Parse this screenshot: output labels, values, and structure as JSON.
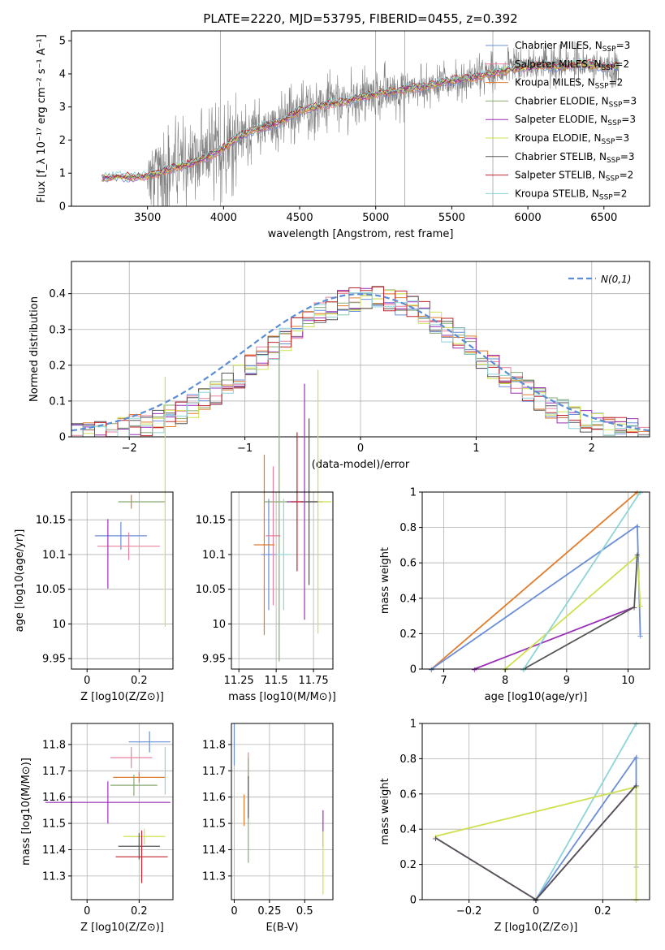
{
  "title": "PLATE=2220, MJD=53795, FIBERID=0455, z=0.392",
  "series_colors": {
    "Chabrier MILES": "#6a8ed8",
    "Salpeter MILES": "#e8829e",
    "Kroupa MILES": "#e07b2c",
    "Chabrier ELODIE": "#88aa70",
    "Salpeter ELODIE": "#9b2fb8",
    "Kroupa ELODIE": "#cfe04f",
    "Chabrier STELIB": "#555555",
    "Salpeter STELIB": "#c0232c",
    "Kroupa STELIB": "#8fd4d8"
  },
  "chart_data": [
    {
      "id": "spectrum",
      "type": "line",
      "title": "PLATE=2220, MJD=53795, FIBERID=0455, z=0.392",
      "xlabel": "wavelength [Angstrom, rest frame]",
      "ylabel": "Flux [f_λ 10⁻¹⁷ erg cm⁻² s⁻¹ A⁻¹]",
      "xlim": [
        3000,
        6800
      ],
      "ylim": [
        0,
        5.3
      ],
      "xticks": [
        3500,
        4000,
        4500,
        5000,
        5500,
        6000,
        6500
      ],
      "yticks": [
        0,
        1,
        2,
        3,
        4,
        5
      ],
      "data_color": "#7f7f7f",
      "model_x": [
        3200,
        3300,
        3400,
        3500,
        3600,
        3700,
        3800,
        3900,
        4000,
        4100,
        4200,
        4300,
        4400,
        4500,
        4600,
        4700,
        4800,
        4900,
        5000,
        5100,
        5200,
        5300,
        5400,
        5500,
        5600,
        5700,
        5800,
        5900,
        6000,
        6100,
        6200,
        6300,
        6400,
        6500,
        6600
      ],
      "model_y": [
        0.85,
        0.9,
        0.88,
        0.9,
        1.05,
        1.2,
        1.3,
        1.5,
        1.75,
        2.1,
        2.3,
        2.45,
        2.6,
        2.9,
        3.0,
        3.1,
        3.15,
        3.3,
        3.4,
        3.45,
        3.55,
        3.6,
        3.7,
        3.8,
        3.85,
        3.95,
        4.05,
        4.15,
        4.2,
        4.25,
        4.2,
        4.3,
        4.3,
        4.2,
        4.25
      ],
      "legend": [
        {
          "name": "Chabrier MILES",
          "nssp": "3"
        },
        {
          "name": "Salpeter MILES",
          "nssp": "2"
        },
        {
          "name": "Kroupa MILES",
          "nssp": "2"
        },
        {
          "name": "Chabrier ELODIE",
          "nssp": "3"
        },
        {
          "name": "Salpeter ELODIE",
          "nssp": "3"
        },
        {
          "name": "Kroupa ELODIE",
          "nssp": "3"
        },
        {
          "name": "Chabrier STELIB",
          "nssp": "3"
        },
        {
          "name": "Salpeter STELIB",
          "nssp": "2"
        },
        {
          "name": "Kroupa STELIB",
          "nssp": "2"
        }
      ],
      "legend_position": "right",
      "grid": false
    },
    {
      "id": "residuals",
      "type": "line",
      "xlabel": "(data-model)/error",
      "ylabel": "Normed distribution",
      "xlim": [
        -2.5,
        2.5
      ],
      "ylim": [
        0,
        0.49
      ],
      "xticks": [
        -2,
        -1,
        0,
        1,
        2
      ],
      "yticks": [
        0.0,
        0.1,
        0.2,
        0.3,
        0.4
      ],
      "legend_label": "N(0,1)",
      "legend_position": "top-right",
      "grid": true
    },
    {
      "id": "age_vs_Z",
      "type": "scatter",
      "xlabel": "Z [log10(Z/Z⊙)]",
      "ylabel": "age  [log10(age/yr)]",
      "xlim": [
        -0.06,
        0.33
      ],
      "ylim": [
        9.935,
        10.19
      ],
      "xticks": [
        0.0,
        0.2
      ],
      "yticks": [
        9.95,
        10.0,
        10.05,
        10.1,
        10.15
      ],
      "grid": true
    },
    {
      "id": "age_vs_mass",
      "type": "scatter",
      "xlabel": "mass [log10(M/M⊙)]",
      "xlim": [
        11.2,
        11.88
      ],
      "ylim": [
        9.935,
        10.19
      ],
      "xticks": [
        11.25,
        11.5,
        11.75
      ],
      "yticks": [
        9.95,
        10.0,
        10.05,
        10.1,
        10.15
      ],
      "grid": true
    },
    {
      "id": "weight_vs_age",
      "type": "line",
      "xlabel": "age  [log10(age/yr)]",
      "ylabel": "mass weight",
      "xlim": [
        6.65,
        10.35
      ],
      "ylim": [
        0,
        1.0
      ],
      "xticks": [
        7,
        8,
        9,
        10
      ],
      "yticks": [
        0.0,
        0.2,
        0.4,
        0.6,
        0.8,
        1.0
      ],
      "grid": true
    },
    {
      "id": "mass_vs_Z",
      "type": "scatter",
      "xlabel": "Z [log10(Z/Z⊙)]",
      "ylabel": "mass [log10(M/M⊙)]",
      "xlim": [
        -0.06,
        0.33
      ],
      "ylim": [
        11.21,
        11.88
      ],
      "xticks": [
        0.0,
        0.2
      ],
      "yticks": [
        11.3,
        11.4,
        11.5,
        11.6,
        11.7,
        11.8
      ],
      "grid": true
    },
    {
      "id": "mass_vs_ebv",
      "type": "scatter",
      "xlabel": "E(B-V)",
      "xlim": [
        -0.02,
        0.7
      ],
      "ylim": [
        11.21,
        11.88
      ],
      "xticks": [
        0.0,
        0.25,
        0.5
      ],
      "yticks": [
        11.3,
        11.4,
        11.5,
        11.6,
        11.7,
        11.8
      ],
      "grid": true
    },
    {
      "id": "weight_vs_Z",
      "type": "line",
      "xlabel": "Z [log10(Z/Z⊙)]",
      "ylabel": "mass weight",
      "xlim": [
        -0.34,
        0.34
      ],
      "ylim": [
        0,
        1.0
      ],
      "xticks": [
        -0.2,
        0.0,
        0.2
      ],
      "yticks": [
        0.0,
        0.2,
        0.4,
        0.6,
        0.8,
        1.0
      ],
      "grid": true
    }
  ]
}
